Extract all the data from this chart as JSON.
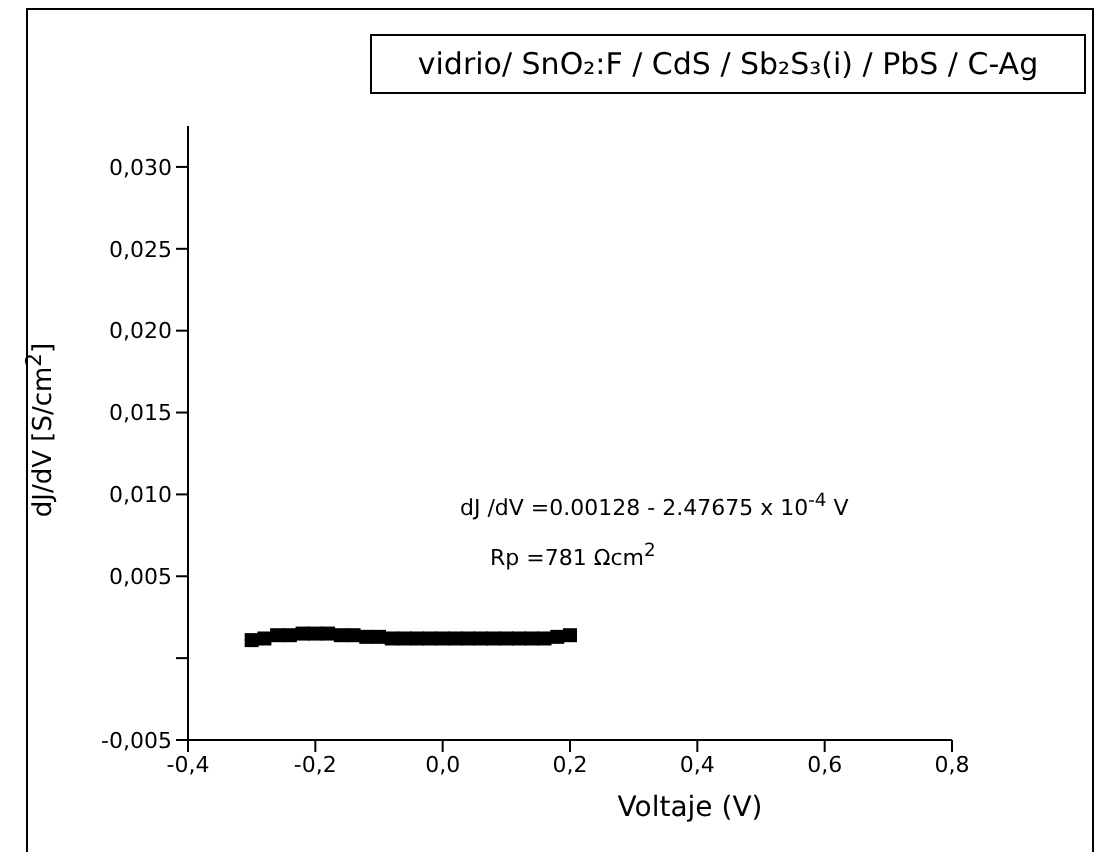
{
  "chart_data": {
    "type": "scatter",
    "title": "vidrio/ SnO₂:F / CdS / Sb₂S₃(i) / PbS / C-Ag",
    "xlabel": "Voltaje (V)",
    "ylabel": "dJ/dV [S/cm$^{2}$]",
    "annotations": [
      "dJ /dV =0.00128 - 2.47675 x 10$^{-4}$ V",
      "Rp =781 Ωcm$^{2}$"
    ],
    "x": [
      -0.3,
      -0.28,
      -0.26,
      -0.24,
      -0.22,
      -0.2,
      -0.18,
      -0.16,
      -0.14,
      -0.12,
      -0.1,
      -0.08,
      -0.06,
      -0.04,
      -0.02,
      0,
      0.02,
      0.04,
      0.06,
      0.08,
      0.1,
      0.12,
      0.14,
      0.16,
      0.18,
      0.2
    ],
    "series": [
      {
        "color": "#000000",
        "values": [
          0.0011,
          0.0012,
          0.0014,
          0.0014,
          0.0015,
          0.0015,
          0.0015,
          0.0014,
          0.0014,
          0.0013,
          0.0013,
          0.0012,
          0.0012,
          0.0012,
          0.0012,
          0.0012,
          0.0012,
          0.0012,
          0.0012,
          0.0012,
          0.0012,
          0.0012,
          0.0012,
          0.0012,
          0.0013,
          0.0014
        ]
      }
    ],
    "xlim": [
      -0.4,
      0.8
    ],
    "ylim": [
      -0.005,
      0.0325
    ],
    "xticks": [
      {
        "value": -0.4,
        "label": "-0,4"
      },
      {
        "value": -0.2,
        "label": "-0,2"
      },
      {
        "value": 0,
        "label": "0,0"
      },
      {
        "value": 0.2,
        "label": "0,2"
      },
      {
        "value": 0.4,
        "label": "0,4"
      },
      {
        "value": 0.6,
        "label": "0,6"
      },
      {
        "value": 0.8,
        "label": "0,8"
      }
    ],
    "yticks": [
      {
        "value": -0.005,
        "label": "-0,005"
      },
      {
        "value": 0,
        "label": null
      },
      {
        "value": 0.005,
        "label": "0,005"
      },
      {
        "value": 0.01,
        "label": "0,010"
      },
      {
        "value": 0.015,
        "label": "0,015"
      },
      {
        "value": 0.02,
        "label": "0,020"
      },
      {
        "value": 0.025,
        "label": "0,025"
      },
      {
        "value": 0.03,
        "label": "0,030"
      }
    ],
    "grid": false,
    "legend": false,
    "marker": "square"
  }
}
